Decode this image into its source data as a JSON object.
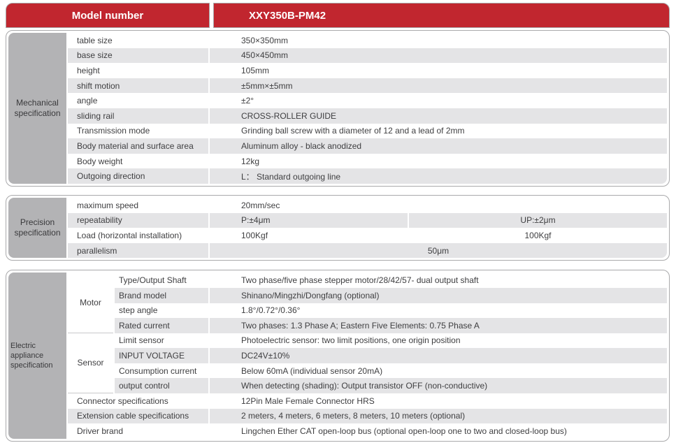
{
  "header": {
    "model_label": "Model number",
    "model_value": "XXY350B-PM42"
  },
  "colors": {
    "accent_red": "#c1262f",
    "sidebar_gray": "#b3b3b5",
    "stripe_gray": "#e4e4e6",
    "border_gray": "#a9a9ab",
    "text": "#3e3e40"
  },
  "sections": {
    "mechanical": {
      "title_line1": "Mechanical",
      "title_line2": "specification",
      "rows": [
        {
          "label": "table size",
          "value": "350×350mm"
        },
        {
          "label": "base size",
          "value": "450×450mm"
        },
        {
          "label": "height",
          "value": "105mm"
        },
        {
          "label": "shift motion",
          "value": "±5mm×±5mm"
        },
        {
          "label": "angle",
          "value": "±2°"
        },
        {
          "label": "sliding rail",
          "value": "CROSS-ROLLER GUIDE"
        },
        {
          "label": "Transmission mode",
          "value": "Grinding ball screw with a diameter of 12 and a lead of 2mm"
        },
        {
          "label": "Body material and surface area",
          "value": "Aluminum alloy - black anodized"
        },
        {
          "label": "Body weight",
          "value": "12kg"
        },
        {
          "label": "Outgoing direction",
          "value": "L： Standard outgoing line"
        }
      ]
    },
    "precision": {
      "title_line1": "Precision",
      "title_line2": "specification",
      "rows": [
        {
          "label": "maximum speed",
          "value1": "20mm/sec",
          "value2": ""
        },
        {
          "label": "repeatability",
          "value1": "P:±4μm",
          "value2": "UP:±2μm"
        },
        {
          "label": "Load (horizontal installation)",
          "value1": "100Kgf",
          "value2": "100Kgf"
        },
        {
          "label": "parallelism",
          "value_span": "50μm"
        }
      ]
    },
    "electric": {
      "title_line1": "Electric appliance",
      "title_line2": "specification",
      "groups": [
        {
          "name": "Motor",
          "rows": [
            {
              "label": "Type/Output Shaft",
              "value": "Two phase/five phase stepper motor/28/42/57- dual output shaft"
            },
            {
              "label": "Brand model",
              "value": "Shinano/Mingzhi/Dongfang (optional)"
            },
            {
              "label": "step angle",
              "value": "1.8°/0.72°/0.36°"
            },
            {
              "label": "Rated current",
              "value": "Two phases: 1.3 Phase A; Eastern Five Elements: 0.75 Phase A"
            }
          ]
        },
        {
          "name": "Sensor",
          "rows": [
            {
              "label": "Limit sensor",
              "value": "Photoelectric sensor: two limit positions, one origin position"
            },
            {
              "label": "INPUT VOLTAGE",
              "value": "DC24V±10%"
            },
            {
              "label": "Consumption current",
              "value": "Below 60mA (individual sensor 20mA)"
            },
            {
              "label": "output control",
              "value": "When detecting (shading): Output transistor OFF (non-conductive)"
            }
          ]
        }
      ],
      "rows": [
        {
          "label": "Connector specifications",
          "value": "12Pin Male Female Connector HRS"
        },
        {
          "label": "Extension cable specifications",
          "value": "2 meters, 4 meters, 6 meters, 8 meters, 10 meters (optional)"
        },
        {
          "label": "Driver brand",
          "value": "Lingchen Ether CAT open-loop bus (optional open-loop one to two and closed-loop bus)"
        }
      ]
    }
  }
}
